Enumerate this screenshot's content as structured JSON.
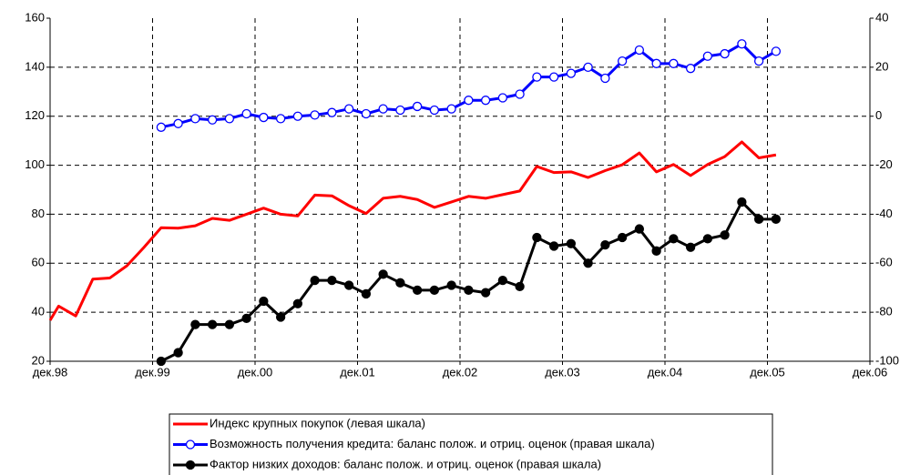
{
  "chart_data": {
    "type": "line",
    "xlim": [
      0,
      96
    ],
    "xticks": [
      {
        "value": 0,
        "label": "дек.98"
      },
      {
        "value": 12,
        "label": "дек.99"
      },
      {
        "value": 24,
        "label": "дек.00"
      },
      {
        "value": 36,
        "label": "дек.01"
      },
      {
        "value": 48,
        "label": "дек.02"
      },
      {
        "value": 60,
        "label": "дек.03"
      },
      {
        "value": 72,
        "label": "дек.04"
      },
      {
        "value": 84,
        "label": "дек.05"
      },
      {
        "value": 96,
        "label": "дек.06"
      }
    ],
    "ylim": [
      20,
      160
    ],
    "yticks": [
      20,
      40,
      60,
      80,
      100,
      120,
      140,
      160
    ],
    "y2lim": [
      -100,
      40
    ],
    "y2ticks": [
      -100,
      -80,
      -60,
      -40,
      -20,
      0,
      20,
      40
    ],
    "grid": true,
    "series": [
      {
        "name": "Индекс крупных покупок (левая шкала)",
        "color": "#ff0000",
        "marker": false,
        "x": [
          0,
          1,
          3,
          5,
          7,
          9,
          11,
          13,
          15,
          17,
          19,
          21,
          23,
          25,
          27,
          29,
          31,
          33,
          35,
          37,
          39,
          41,
          43,
          45,
          47,
          49,
          51,
          53,
          55,
          57,
          59,
          61,
          63,
          65,
          67,
          69,
          71,
          73,
          75,
          77,
          79,
          81,
          83,
          85
        ],
        "values": [
          36.7,
          42.5,
          38.5,
          53.5,
          54,
          59,
          66.5,
          74.5,
          74.3,
          75.3,
          78.3,
          77.5,
          80,
          82.5,
          80,
          79.3,
          87.8,
          87.5,
          83.5,
          80.3,
          86.5,
          87.3,
          86,
          82.8,
          85,
          87.3,
          86.5,
          88,
          89.5,
          99.5,
          97,
          97.3,
          95,
          97.8,
          100.2,
          105,
          97.3,
          100.3,
          95.8,
          100.3,
          103.5,
          109.5,
          103,
          104.2
        ]
      },
      {
        "name": "Возможность получения кредита: баланс полож. и отриц. оценок (правая шкала)",
        "color": "#0000ff",
        "marker": "#ffffff",
        "axis": "y2",
        "x": [
          13,
          15,
          17,
          19,
          21,
          23,
          25,
          27,
          29,
          31,
          33,
          35,
          37,
          39,
          41,
          43,
          45,
          47,
          49,
          51,
          53,
          55,
          57,
          59,
          61,
          63,
          65,
          67,
          69,
          71,
          73,
          75,
          77,
          79,
          81,
          83,
          85
        ],
        "values": [
          -4.5,
          -3,
          -1,
          -1.5,
          -1,
          1,
          -0.5,
          -1,
          0,
          0.5,
          1.5,
          3,
          1,
          3,
          2.5,
          4,
          2.5,
          3,
          6.5,
          6.5,
          7.5,
          9,
          16,
          16,
          17.5,
          20,
          15.5,
          22.5,
          27,
          21.5,
          21.5,
          19.5,
          24.5,
          25.5,
          29.5,
          22.5,
          26.5
        ]
      },
      {
        "name": "Фактор низких доходов: баланс полож. и отриц. оценок (правая шкала)",
        "color": "#000000",
        "marker": "#000000",
        "axis": "y2",
        "x": [
          13,
          15,
          17,
          19,
          21,
          23,
          25,
          27,
          29,
          31,
          33,
          35,
          37,
          39,
          41,
          43,
          45,
          47,
          49,
          51,
          53,
          55,
          57,
          59,
          61,
          63,
          65,
          67,
          69,
          71,
          73,
          75,
          77,
          79,
          81,
          83,
          85
        ],
        "values": [
          -100,
          -96.5,
          -85,
          -85,
          -85,
          -82.5,
          -75.5,
          -82,
          -76.5,
          -67,
          -67,
          -69,
          -72.5,
          -64.5,
          -68,
          -71,
          -71,
          -69,
          -71,
          -72,
          -67,
          -69.5,
          -49.5,
          -53,
          -52,
          -60,
          -52.5,
          -49.5,
          -46,
          -55,
          -50,
          -53.5,
          -50,
          -48.5,
          -35,
          -42,
          -42
        ]
      }
    ]
  }
}
